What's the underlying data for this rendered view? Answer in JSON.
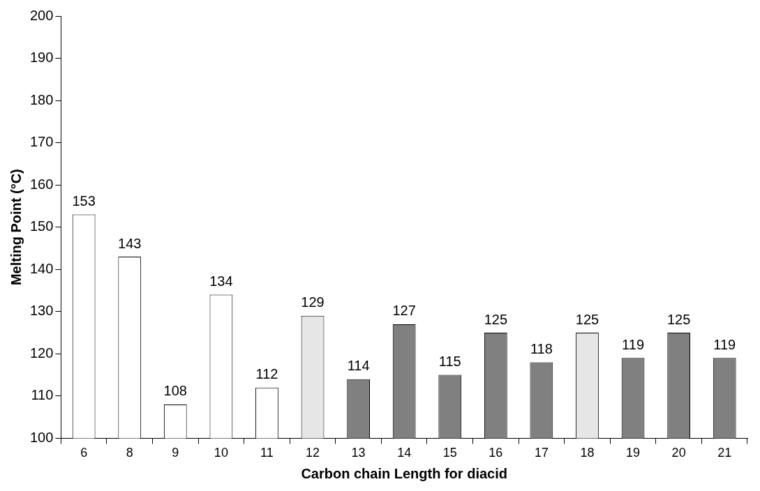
{
  "chart_data": {
    "type": "bar",
    "xlabel": "Carbon chain Length for diacid",
    "ylabel": "Melting Point (°C)",
    "categories": [
      "6",
      "8",
      "9",
      "10",
      "11",
      "12",
      "13",
      "14",
      "15",
      "16",
      "17",
      "18",
      "19",
      "20",
      "21"
    ],
    "values": [
      153,
      143,
      108,
      134,
      112,
      129,
      114,
      127,
      115,
      125,
      118,
      125,
      119,
      125,
      119
    ],
    "colors": [
      "#ffffff",
      "#ffffff",
      "#ffffff",
      "#ffffff",
      "#ffffff",
      "#e6e6e6",
      "#808080",
      "#808080",
      "#808080",
      "#808080",
      "#808080",
      "#e6e6e6",
      "#808080",
      "#808080",
      "#808080"
    ],
    "ylim": [
      100,
      200
    ],
    "yticks": [
      100,
      110,
      120,
      130,
      140,
      150,
      160,
      170,
      180,
      190,
      200
    ],
    "data_labels": true,
    "grid": false,
    "legend": false
  }
}
